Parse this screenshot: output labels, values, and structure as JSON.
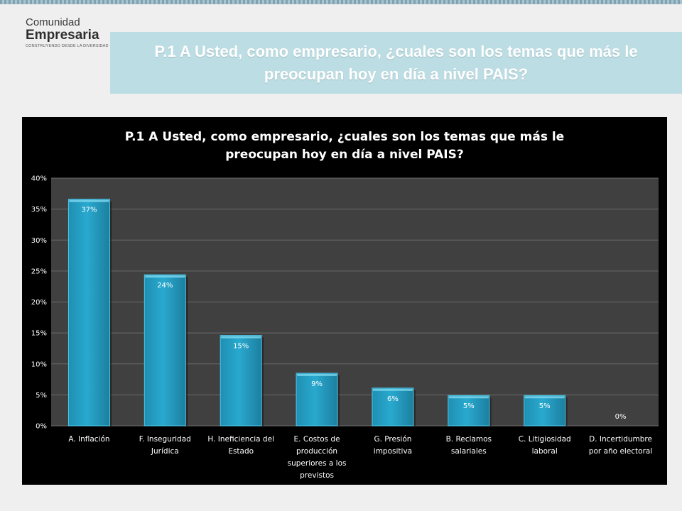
{
  "logo": {
    "line1": "Comunidad",
    "line2": "Empresaria",
    "tagline": "CONSTRUYENDO DESDE LA DIVERSIDAD"
  },
  "header": {
    "title": "P.1 A Usted, como empresario, ¿cuales son los temas que más le preocupan hoy en día a nivel PAIS?"
  },
  "colors": {
    "bar": "#29a9cf",
    "plot_bg": "#404040",
    "chart_bg": "#000000",
    "header_bg": "#bcdde3"
  },
  "chart_data": {
    "type": "bar",
    "title_lines": [
      "P.1 A Usted, como empresario, ¿cuales son los temas que más le",
      "preocupan hoy en día a nivel PAIS?"
    ],
    "categories": [
      "A. Inflación",
      "F. Inseguridad Jurídica",
      "H. Ineficiencia del Estado",
      "E. Costos de producción superiores a los previstos",
      "G. Presión impositiva",
      "B. Reclamos salariales",
      "C. Litigiosidad laboral",
      "D. Incertidumbre por año electoral"
    ],
    "category_lines": [
      [
        "A. Inflación"
      ],
      [
        "F. Inseguridad",
        "Jurídica"
      ],
      [
        "H. Ineficiencia del",
        "Estado"
      ],
      [
        "E. Costos de",
        "producción",
        "superiores a los",
        "previstos"
      ],
      [
        "G. Presión",
        "impositiva"
      ],
      [
        "B. Reclamos",
        "salariales"
      ],
      [
        "C. Litigiosidad",
        "laboral"
      ],
      [
        "D. Incertidumbre",
        "por año electoral"
      ]
    ],
    "values": [
      36.6,
      24.4,
      14.6,
      8.5,
      6.1,
      4.9,
      4.9,
      0
    ],
    "data_labels": [
      "37%",
      "24%",
      "15%",
      "9%",
      "6%",
      "5%",
      "5%",
      "0%"
    ],
    "ylim": [
      0,
      40
    ],
    "yticks": [
      0,
      5,
      10,
      15,
      20,
      25,
      30,
      35,
      40
    ],
    "ytick_labels": [
      "0%",
      "5%",
      "10%",
      "15%",
      "20%",
      "25%",
      "30%",
      "35%",
      "40%"
    ],
    "grid": true,
    "legend": "none"
  }
}
